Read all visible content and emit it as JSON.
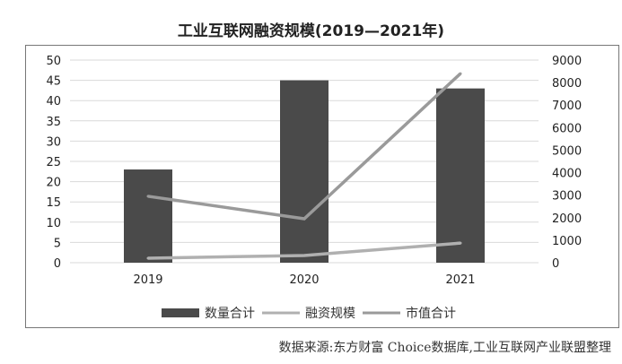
{
  "chart_data": {
    "type": "bar",
    "title": "工业互联网融资规模(2019—2021年)",
    "categories": [
      "2019",
      "2020",
      "2021"
    ],
    "y_left": {
      "range": [
        0,
        50
      ],
      "ticks": [
        0,
        5,
        10,
        15,
        20,
        25,
        30,
        35,
        40,
        45,
        50
      ]
    },
    "y_right": {
      "range": [
        0,
        9000
      ],
      "ticks": [
        0,
        1000,
        2000,
        3000,
        4000,
        5000,
        6000,
        7000,
        8000,
        9000
      ]
    },
    "grid": true,
    "legend_placement": "bottom",
    "series": [
      {
        "name": "数量合计",
        "type": "bar",
        "axis": "left",
        "values": [
          23,
          45,
          43
        ],
        "color": "#4a4a4a"
      },
      {
        "name": "融资规模",
        "type": "line",
        "axis": "right",
        "values": [
          200,
          320,
          870
        ],
        "color": "#b0b0b0"
      },
      {
        "name": "市值合计",
        "type": "line",
        "axis": "right",
        "values": [
          2950,
          1950,
          8400
        ],
        "color": "#9a9a9a"
      }
    ]
  },
  "source": "数据来源:东方财富 Choice数据库,工业互联网产业联盟整理"
}
